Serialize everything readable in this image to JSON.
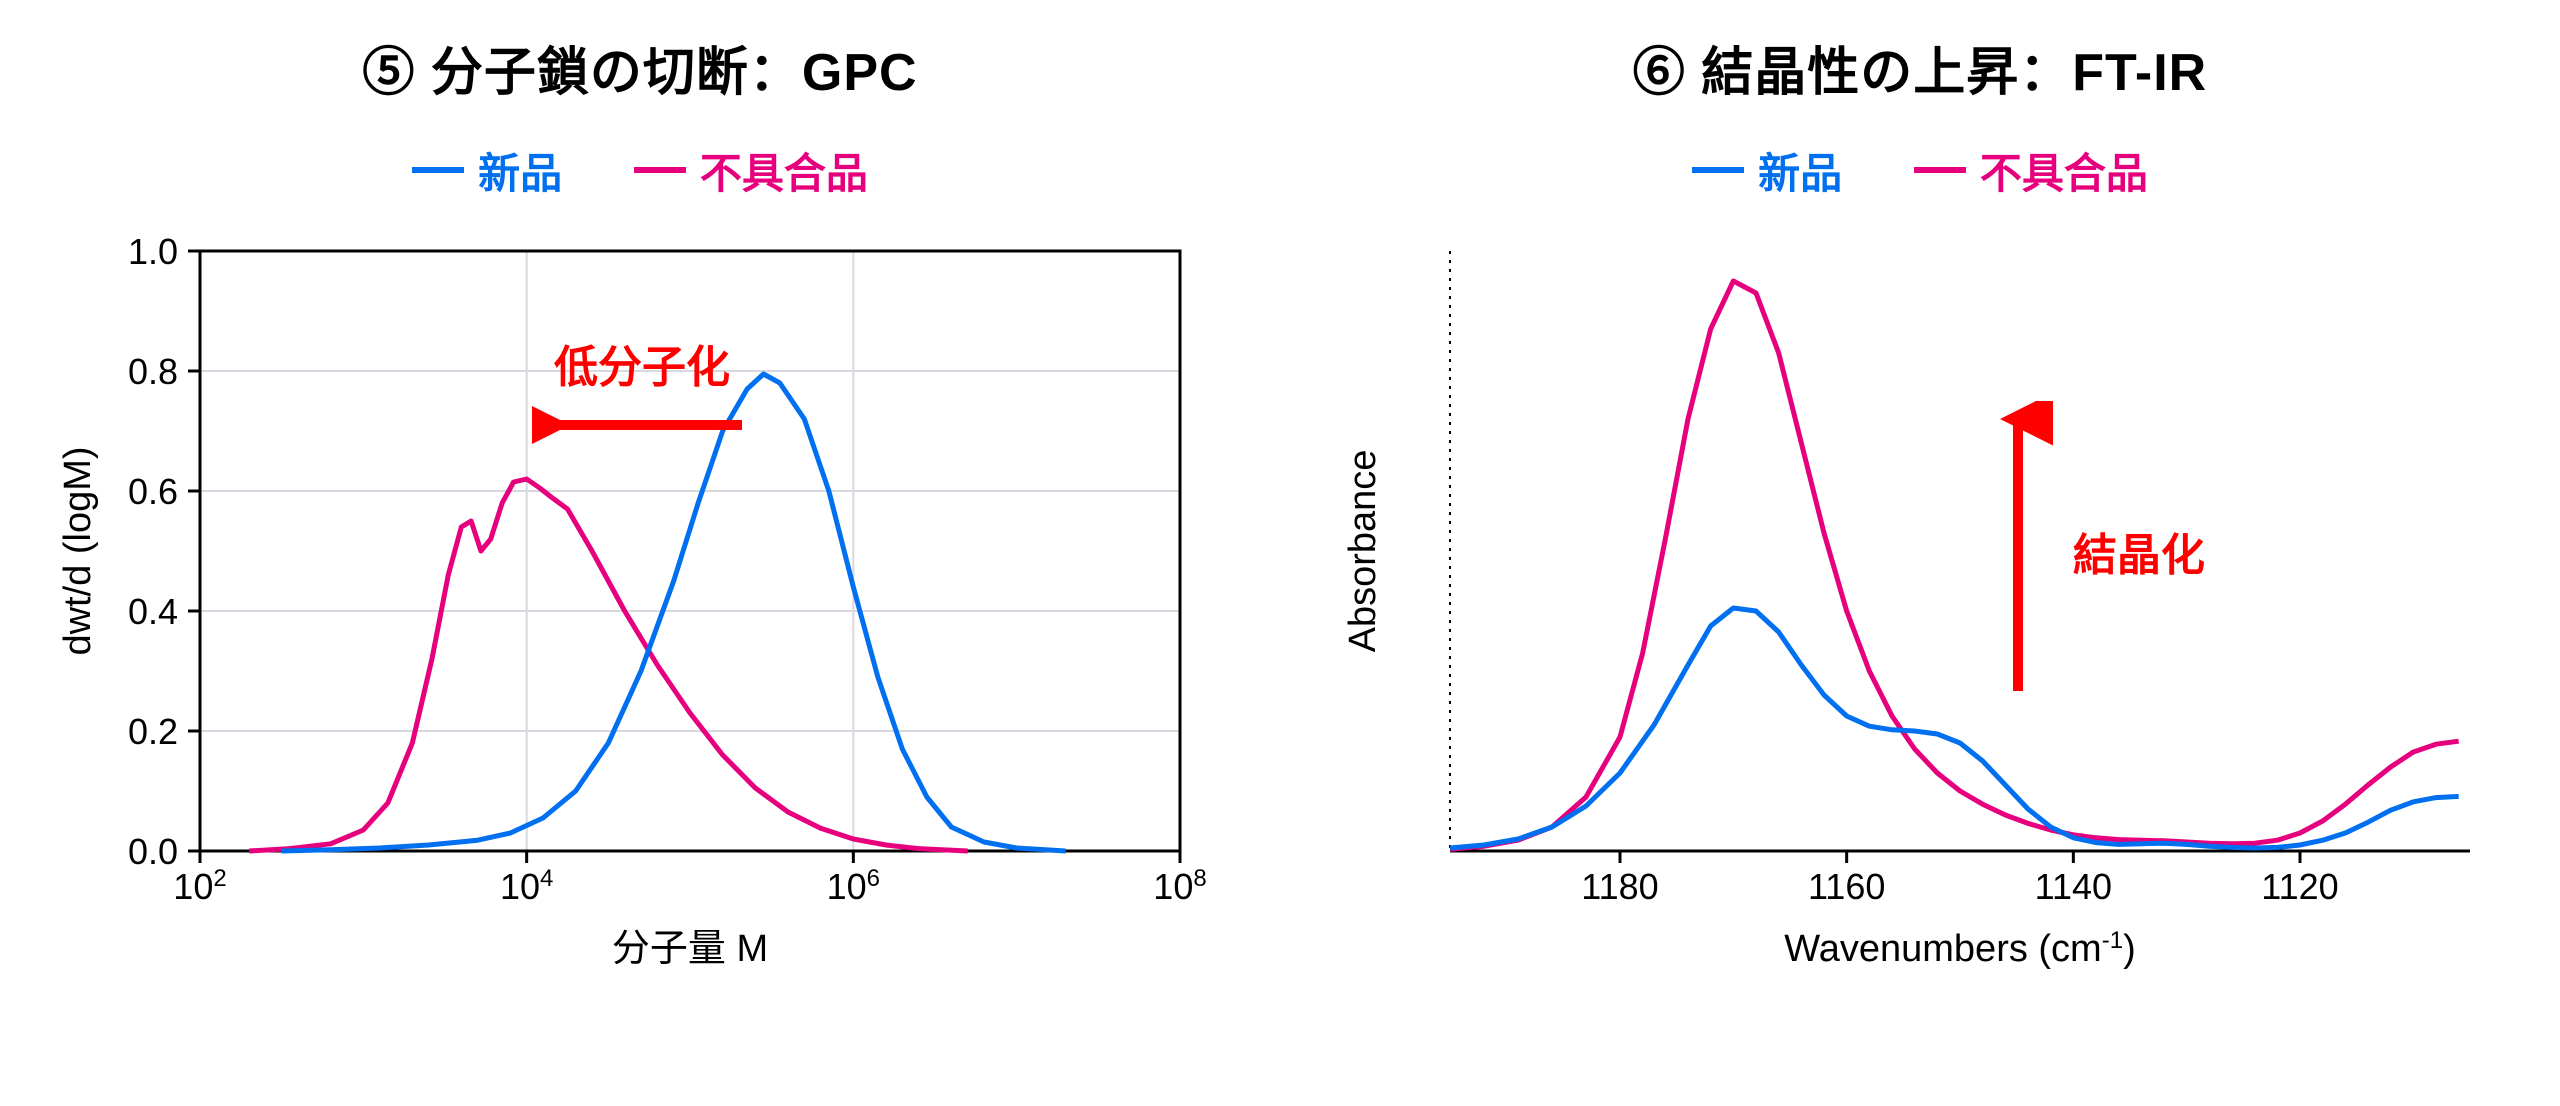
{
  "left": {
    "title": "⑤ 分子鎖の切断：GPC",
    "legend": {
      "series1": {
        "label": "新品",
        "color": "#0070f0"
      },
      "series2": {
        "label": "不具合品",
        "color": "#e6007d"
      }
    },
    "annotation": {
      "text": "低分子化",
      "color": "#ff0000",
      "arrow_dir": "left"
    },
    "xlabel": "分子量 M",
    "ylabel": "dwt/d (logM)",
    "xscale": "log",
    "xlim": [
      2,
      8
    ],
    "xticks_exp": [
      2,
      4,
      6,
      8
    ],
    "ylim": [
      0.0,
      1.0
    ],
    "yticks": [
      0.0,
      0.2,
      0.4,
      0.6,
      0.8,
      1.0
    ],
    "grid_color": "#d8d8e0",
    "axis_color": "#000000",
    "line_width": 5,
    "series1_data": [
      [
        2.5,
        0.0
      ],
      [
        2.8,
        0.002
      ],
      [
        3.1,
        0.005
      ],
      [
        3.4,
        0.01
      ],
      [
        3.7,
        0.018
      ],
      [
        3.9,
        0.03
      ],
      [
        4.1,
        0.055
      ],
      [
        4.3,
        0.1
      ],
      [
        4.5,
        0.18
      ],
      [
        4.7,
        0.3
      ],
      [
        4.9,
        0.45
      ],
      [
        5.05,
        0.58
      ],
      [
        5.2,
        0.7
      ],
      [
        5.35,
        0.77
      ],
      [
        5.45,
        0.795
      ],
      [
        5.55,
        0.78
      ],
      [
        5.7,
        0.72
      ],
      [
        5.85,
        0.6
      ],
      [
        6.0,
        0.44
      ],
      [
        6.15,
        0.29
      ],
      [
        6.3,
        0.17
      ],
      [
        6.45,
        0.09
      ],
      [
        6.6,
        0.04
      ],
      [
        6.8,
        0.015
      ],
      [
        7.0,
        0.005
      ],
      [
        7.3,
        0.0
      ]
    ],
    "series2_data": [
      [
        2.3,
        0.0
      ],
      [
        2.55,
        0.004
      ],
      [
        2.8,
        0.012
      ],
      [
        3.0,
        0.035
      ],
      [
        3.15,
        0.08
      ],
      [
        3.3,
        0.18
      ],
      [
        3.42,
        0.32
      ],
      [
        3.52,
        0.46
      ],
      [
        3.6,
        0.54
      ],
      [
        3.66,
        0.55
      ],
      [
        3.72,
        0.5
      ],
      [
        3.78,
        0.52
      ],
      [
        3.85,
        0.58
      ],
      [
        3.92,
        0.615
      ],
      [
        4.0,
        0.62
      ],
      [
        4.08,
        0.605
      ],
      [
        4.15,
        0.59
      ],
      [
        4.25,
        0.57
      ],
      [
        4.4,
        0.5
      ],
      [
        4.6,
        0.4
      ],
      [
        4.8,
        0.31
      ],
      [
        5.0,
        0.23
      ],
      [
        5.2,
        0.16
      ],
      [
        5.4,
        0.105
      ],
      [
        5.6,
        0.065
      ],
      [
        5.8,
        0.038
      ],
      [
        6.0,
        0.02
      ],
      [
        6.2,
        0.01
      ],
      [
        6.4,
        0.004
      ],
      [
        6.7,
        0.0
      ]
    ]
  },
  "right": {
    "title": "⑥ 結晶性の上昇：FT-IR",
    "legend": {
      "series1": {
        "label": "新品",
        "color": "#0070f0"
      },
      "series2": {
        "label": "不具合品",
        "color": "#e6007d"
      }
    },
    "annotation": {
      "text": "結晶化",
      "color": "#ff0000",
      "arrow_dir": "up"
    },
    "xlabel": "Wavenumbers (cm⁻¹)",
    "ylabel": "Absorbance",
    "xlim": [
      1195,
      1105
    ],
    "xticks": [
      1180,
      1160,
      1140,
      1120
    ],
    "ylim": [
      0.0,
      1.0
    ],
    "axis_color": "#000000",
    "yaxis_style": "dotted",
    "line_width": 5,
    "series1_data": [
      [
        1195,
        0.005
      ],
      [
        1192,
        0.01
      ],
      [
        1189,
        0.02
      ],
      [
        1186,
        0.04
      ],
      [
        1183,
        0.075
      ],
      [
        1180,
        0.13
      ],
      [
        1177,
        0.21
      ],
      [
        1174,
        0.31
      ],
      [
        1172,
        0.375
      ],
      [
        1170,
        0.405
      ],
      [
        1168,
        0.4
      ],
      [
        1166,
        0.365
      ],
      [
        1164,
        0.31
      ],
      [
        1162,
        0.26
      ],
      [
        1160,
        0.225
      ],
      [
        1158,
        0.208
      ],
      [
        1156,
        0.202
      ],
      [
        1154,
        0.2
      ],
      [
        1152,
        0.195
      ],
      [
        1150,
        0.18
      ],
      [
        1148,
        0.15
      ],
      [
        1146,
        0.11
      ],
      [
        1144,
        0.07
      ],
      [
        1142,
        0.04
      ],
      [
        1140,
        0.022
      ],
      [
        1138,
        0.014
      ],
      [
        1136,
        0.011
      ],
      [
        1134,
        0.012
      ],
      [
        1132,
        0.013
      ],
      [
        1130,
        0.011
      ],
      [
        1128,
        0.008
      ],
      [
        1126,
        0.006
      ],
      [
        1124,
        0.005
      ],
      [
        1122,
        0.006
      ],
      [
        1120,
        0.01
      ],
      [
        1118,
        0.018
      ],
      [
        1116,
        0.03
      ],
      [
        1114,
        0.048
      ],
      [
        1112,
        0.068
      ],
      [
        1110,
        0.082
      ],
      [
        1108,
        0.089
      ],
      [
        1106,
        0.091
      ]
    ],
    "series2_data": [
      [
        1195,
        0.003
      ],
      [
        1192,
        0.008
      ],
      [
        1189,
        0.018
      ],
      [
        1186,
        0.04
      ],
      [
        1183,
        0.09
      ],
      [
        1180,
        0.19
      ],
      [
        1178,
        0.33
      ],
      [
        1176,
        0.52
      ],
      [
        1174,
        0.72
      ],
      [
        1172,
        0.87
      ],
      [
        1170,
        0.95
      ],
      [
        1168,
        0.93
      ],
      [
        1166,
        0.83
      ],
      [
        1164,
        0.68
      ],
      [
        1162,
        0.53
      ],
      [
        1160,
        0.4
      ],
      [
        1158,
        0.3
      ],
      [
        1156,
        0.225
      ],
      [
        1154,
        0.17
      ],
      [
        1152,
        0.13
      ],
      [
        1150,
        0.1
      ],
      [
        1148,
        0.078
      ],
      [
        1146,
        0.06
      ],
      [
        1144,
        0.046
      ],
      [
        1142,
        0.035
      ],
      [
        1140,
        0.027
      ],
      [
        1138,
        0.022
      ],
      [
        1136,
        0.019
      ],
      [
        1134,
        0.018
      ],
      [
        1132,
        0.017
      ],
      [
        1130,
        0.015
      ],
      [
        1128,
        0.013
      ],
      [
        1126,
        0.012
      ],
      [
        1124,
        0.013
      ],
      [
        1122,
        0.018
      ],
      [
        1120,
        0.03
      ],
      [
        1118,
        0.05
      ],
      [
        1116,
        0.078
      ],
      [
        1114,
        0.11
      ],
      [
        1112,
        0.14
      ],
      [
        1110,
        0.165
      ],
      [
        1108,
        0.178
      ],
      [
        1106,
        0.183
      ]
    ]
  }
}
